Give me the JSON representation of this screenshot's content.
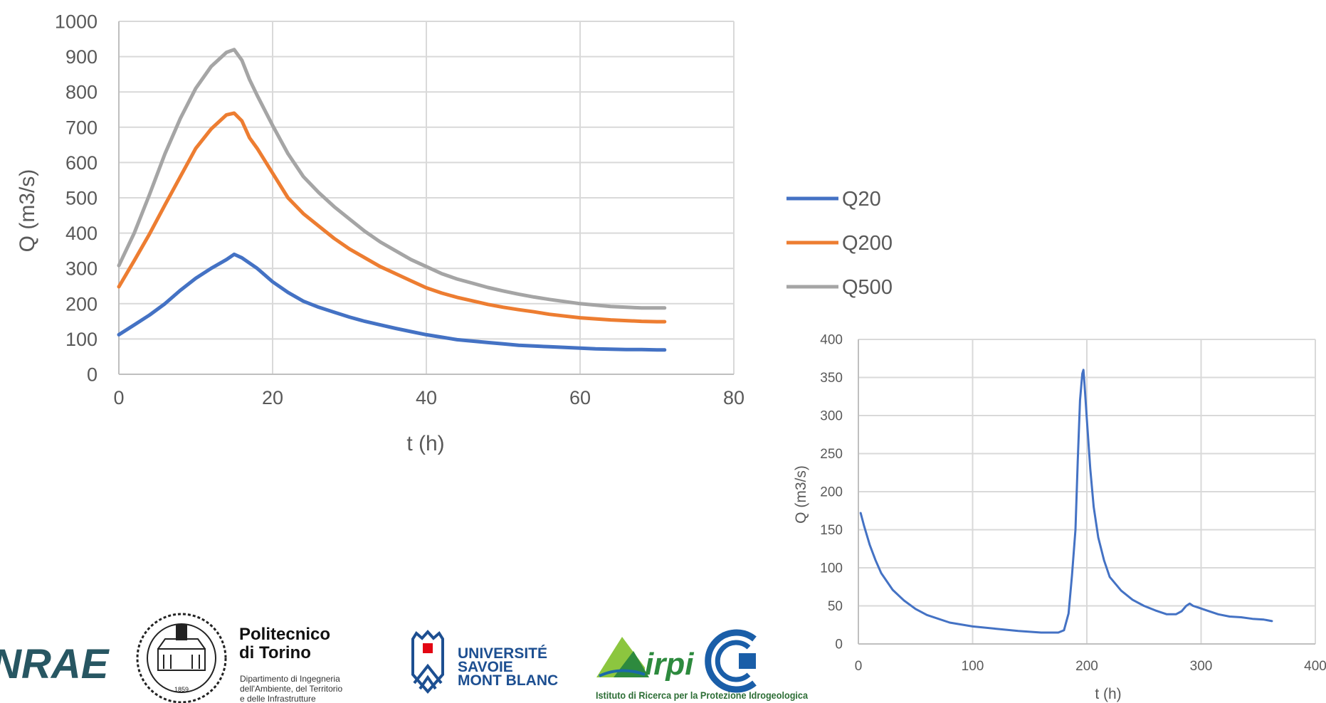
{
  "chart_data": [
    {
      "type": "line",
      "xlabel": "t (h)",
      "ylabel": "Q (m3/s)",
      "xlim": [
        0,
        80
      ],
      "ylim": [
        0,
        1000
      ],
      "xticks": [
        "0",
        "20",
        "40",
        "60",
        "80"
      ],
      "yticks": [
        "0",
        "100",
        "200",
        "300",
        "400",
        "500",
        "600",
        "700",
        "800",
        "900",
        "1000"
      ],
      "grid": true,
      "legend": "right",
      "series": [
        {
          "name": "Q20",
          "color": "#4472C4",
          "x": [
            0,
            2,
            4,
            6,
            8,
            10,
            12,
            14,
            15,
            16,
            18,
            20,
            22,
            24,
            26,
            28,
            30,
            32,
            34,
            36,
            38,
            40,
            42,
            44,
            46,
            48,
            50,
            52,
            54,
            56,
            58,
            60,
            62,
            64,
            66,
            68,
            70,
            71
          ],
          "values": [
            112,
            140,
            168,
            200,
            238,
            272,
            300,
            325,
            340,
            330,
            300,
            262,
            232,
            207,
            190,
            176,
            162,
            150,
            140,
            130,
            121,
            112,
            105,
            98,
            94,
            90,
            86,
            82,
            80,
            78,
            76,
            74,
            72,
            71,
            70,
            70,
            69,
            69
          ]
        },
        {
          "name": "Q200",
          "color": "#ED7D31",
          "x": [
            0,
            2,
            4,
            6,
            8,
            10,
            12,
            14,
            15,
            16,
            17,
            18,
            20,
            22,
            24,
            26,
            28,
            30,
            32,
            34,
            36,
            38,
            40,
            42,
            44,
            46,
            48,
            50,
            52,
            54,
            56,
            58,
            60,
            62,
            64,
            66,
            68,
            70,
            71
          ],
          "values": [
            248,
            322,
            398,
            480,
            560,
            640,
            695,
            735,
            740,
            718,
            670,
            640,
            570,
            500,
            455,
            420,
            385,
            355,
            330,
            305,
            285,
            265,
            245,
            230,
            218,
            208,
            198,
            190,
            183,
            177,
            170,
            165,
            160,
            157,
            154,
            152,
            150,
            149,
            149
          ]
        },
        {
          "name": "Q500",
          "color": "#A5A5A5",
          "x": [
            0,
            2,
            4,
            6,
            8,
            10,
            12,
            14,
            15,
            16,
            17,
            18,
            20,
            22,
            24,
            26,
            28,
            30,
            32,
            34,
            36,
            38,
            40,
            42,
            44,
            46,
            48,
            50,
            52,
            54,
            56,
            58,
            60,
            62,
            64,
            66,
            68,
            70,
            71
          ],
          "values": [
            308,
            400,
            510,
            625,
            725,
            810,
            872,
            912,
            920,
            890,
            835,
            790,
            705,
            625,
            560,
            515,
            475,
            440,
            405,
            375,
            350,
            325,
            305,
            285,
            270,
            258,
            246,
            236,
            227,
            219,
            212,
            206,
            200,
            196,
            192,
            190,
            188,
            188,
            188
          ]
        }
      ]
    },
    {
      "type": "line",
      "xlabel": "t (h)",
      "ylabel": "Q (m3/s)",
      "xlim": [
        0,
        400
      ],
      "ylim": [
        0,
        400
      ],
      "xticks": [
        "0",
        "100",
        "200",
        "300",
        "400"
      ],
      "yticks": [
        "0",
        "50",
        "100",
        "150",
        "200",
        "250",
        "300",
        "350",
        "400"
      ],
      "grid": true,
      "series": [
        {
          "color": "#4472C4",
          "x": [
            2,
            5,
            10,
            15,
            20,
            30,
            40,
            50,
            60,
            80,
            100,
            120,
            140,
            160,
            175,
            180,
            184,
            187,
            190,
            192,
            194,
            196,
            197,
            198,
            200,
            203,
            206,
            210,
            215,
            220,
            230,
            240,
            250,
            260,
            270,
            278,
            283,
            287,
            290,
            293,
            297,
            305,
            315,
            325,
            335,
            345,
            355,
            362
          ],
          "values": [
            172,
            155,
            130,
            110,
            93,
            71,
            57,
            46,
            38,
            28,
            23,
            20,
            17,
            15,
            15,
            18,
            40,
            90,
            150,
            240,
            320,
            355,
            360,
            340,
            295,
            230,
            180,
            140,
            110,
            88,
            70,
            58,
            50,
            44,
            39,
            39,
            43,
            50,
            53,
            50,
            48,
            44,
            39,
            36,
            35,
            33,
            32,
            30
          ]
        }
      ]
    }
  ],
  "logos": {
    "inrae": "INRAE",
    "polito_name_line1": "Politecnico",
    "polito_name_line2": "di Torino",
    "polito_dept_line1": "Dipartimento di Ingegneria",
    "polito_dept_line2": "dell'Ambiente, del Territorio",
    "polito_dept_line3": "e delle Infrastrutture",
    "polito_year": "1859",
    "usmb_line1": "UNIVERSITÉ",
    "usmb_line2": "SAVOIE",
    "usmb_line3": "MONT BLANC",
    "irpi_mark": "irpi",
    "irpi_caption": "Istituto di Ricerca per la Protezione Idrogeologica"
  }
}
